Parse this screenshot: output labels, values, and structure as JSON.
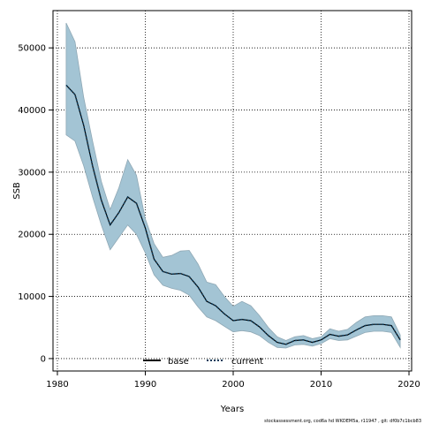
{
  "chart_data": {
    "type": "line",
    "xlabel": "Years",
    "ylabel": "SSB",
    "xlim": [
      1979.5,
      2020.3
    ],
    "ylim": [
      -2000,
      56000
    ],
    "x_ticks": [
      1980,
      1990,
      2000,
      2010,
      2020
    ],
    "y_ticks": [
      0,
      10000,
      20000,
      30000,
      40000,
      50000
    ],
    "grid": true,
    "legend_placement": "bottom-center",
    "legend": [
      {
        "label": "base",
        "style": "solid",
        "color": "#000000"
      },
      {
        "label": "current",
        "style": "dotted",
        "color": "#0b3a5a"
      }
    ],
    "band_color": "#a3c4d4",
    "band_edge_color": "#8fa8b5",
    "x": [
      1981,
      1982,
      1983,
      1984,
      1985,
      1986,
      1987,
      1988,
      1989,
      1990,
      1991,
      1992,
      1993,
      1994,
      1995,
      1996,
      1997,
      1998,
      1999,
      2000,
      2001,
      2002,
      2003,
      2004,
      2005,
      2006,
      2007,
      2008,
      2009,
      2010,
      2011,
      2012,
      2013,
      2014,
      2015,
      2016,
      2017,
      2018,
      2019
    ],
    "series": [
      {
        "name": "base",
        "values": [
          44000,
          42500,
          37500,
          31000,
          25500,
          21500,
          23500,
          26000,
          25000,
          21000,
          16000,
          14000,
          13600,
          13700,
          13200,
          11500,
          9200,
          8500,
          7200,
          6100,
          6300,
          6100,
          5100,
          3700,
          2600,
          2300,
          2900,
          3000,
          2600,
          3000,
          3900,
          3600,
          3800,
          4600,
          5300,
          5500,
          5500,
          5300,
          3000
        ]
      },
      {
        "name": "current",
        "values": [
          44000,
          42500,
          37500,
          31000,
          25500,
          21500,
          23500,
          26000,
          25000,
          21000,
          16000,
          14000,
          13600,
          13700,
          13200,
          11500,
          9200,
          8500,
          7200,
          6100,
          6300,
          6100,
          5100,
          3700,
          2600,
          2300,
          2900,
          3000,
          2600,
          3000,
          3900,
          3600,
          3800,
          4600,
          5300,
          5500,
          5500,
          5300,
          3000
        ]
      }
    ],
    "confidence_band": {
      "upper": [
        54000,
        51000,
        42000,
        35000,
        28500,
        24000,
        27500,
        32000,
        29500,
        22500,
        18500,
        16300,
        16600,
        17300,
        17400,
        15200,
        12300,
        11900,
        10000,
        8400,
        9200,
        8500,
        6900,
        5000,
        3500,
        2900,
        3500,
        3700,
        3200,
        3500,
        4800,
        4400,
        4700,
        5800,
        6700,
        6900,
        6900,
        6700,
        3800
      ],
      "lower": [
        36000,
        35000,
        31000,
        26000,
        21500,
        17500,
        19500,
        21500,
        20000,
        17000,
        13500,
        11800,
        11300,
        11000,
        10200,
        8300,
        6700,
        6100,
        5200,
        4300,
        4500,
        4300,
        3700,
        2600,
        1800,
        1700,
        2200,
        2300,
        2000,
        2400,
        3200,
        2900,
        3000,
        3600,
        4200,
        4400,
        4400,
        4200,
        1800
      ]
    }
  },
  "footer_text": "stockassessment.org, cod6a hd WKDEM5a, r11947 , git: df0b7c1bcb83"
}
